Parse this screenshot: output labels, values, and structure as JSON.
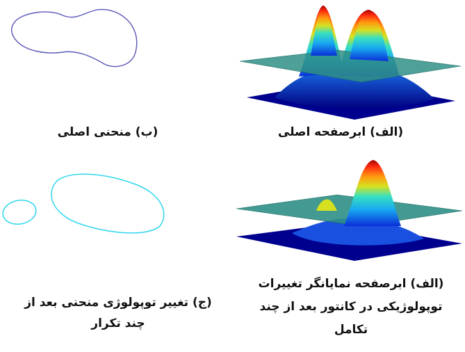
{
  "figure": {
    "top_left_caption": "(ب) منحنی اصلی",
    "top_right_caption": "(الف) ابرصفحه اصلی",
    "bottom_left_caption": "(ج) تغییر توپولوژی منحنی بعد از چند تکرار",
    "bottom_right_caption_lines": [
      "(الف) ابرصفحه نمایانگر تغییرات",
      "توپولوژیکی در کانتور بعد از چند",
      "تکامل"
    ]
  },
  "colors": {
    "original_curve": "#5a55b8",
    "evolved_curve": "#2fd6ee",
    "plane_fill": "#2f8f86",
    "surface_dark": "#00008f"
  }
}
